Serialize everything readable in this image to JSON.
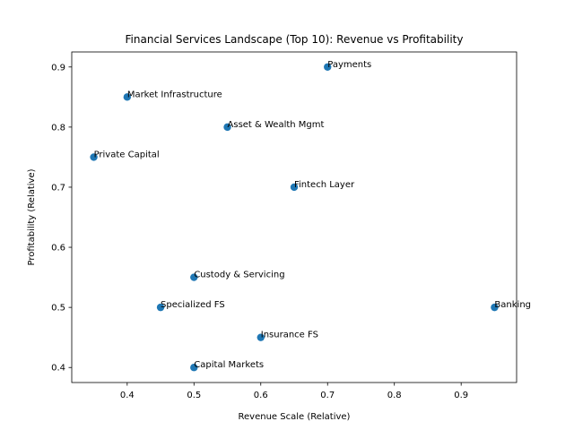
{
  "chart_data": {
    "type": "scatter",
    "title": "Financial Services Landscape (Top 10): Revenue vs Profitability",
    "xlabel": "Revenue Scale (Relative)",
    "ylabel": "Profitability (Relative)",
    "xlim": [
      0.317,
      0.983
    ],
    "ylim": [
      0.375,
      0.925
    ],
    "xticks": [
      0.4,
      0.5,
      0.6,
      0.7,
      0.8,
      0.9
    ],
    "yticks": [
      0.4,
      0.5,
      0.6,
      0.7,
      0.8,
      0.9
    ],
    "xtick_labels": [
      "0.4",
      "0.5",
      "0.6",
      "0.7",
      "0.8",
      "0.9"
    ],
    "ytick_labels": [
      "0.4",
      "0.5",
      "0.6",
      "0.7",
      "0.8",
      "0.9"
    ],
    "grid": false,
    "color": "#1f77b4",
    "points": [
      {
        "label": "Banking",
        "x": 0.95,
        "y": 0.5
      },
      {
        "label": "Payments",
        "x": 0.7,
        "y": 0.9
      },
      {
        "label": "Market Infrastructure",
        "x": 0.4,
        "y": 0.85
      },
      {
        "label": "Asset & Wealth Mgmt",
        "x": 0.55,
        "y": 0.8
      },
      {
        "label": "Private Capital",
        "x": 0.35,
        "y": 0.75
      },
      {
        "label": "Fintech Layer",
        "x": 0.65,
        "y": 0.7
      },
      {
        "label": "Custody & Servicing",
        "x": 0.5,
        "y": 0.55
      },
      {
        "label": "Specialized FS",
        "x": 0.45,
        "y": 0.5
      },
      {
        "label": "Insurance FS",
        "x": 0.6,
        "y": 0.45
      },
      {
        "label": "Capital Markets",
        "x": 0.5,
        "y": 0.4
      }
    ]
  }
}
